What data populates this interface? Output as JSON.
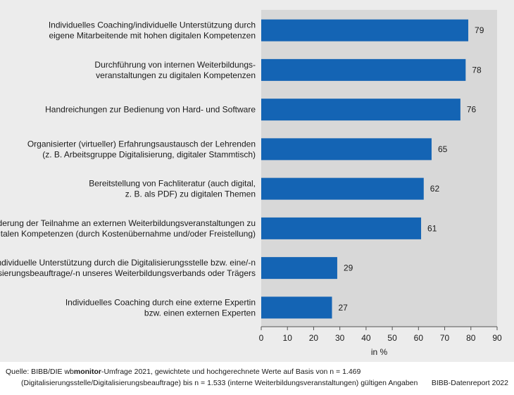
{
  "chart_data": {
    "type": "bar",
    "orientation": "horizontal",
    "categories": [
      [
        "Individuelles Coaching/individuelle Unterstützung durch",
        "eigene Mitarbeitende mit hohen digitalen Kompetenzen"
      ],
      [
        "Durchführung von internen Weiterbildungs-",
        "veranstaltungen zu digitalen Kompetenzen"
      ],
      [
        "Handreichungen zur Bedienung von Hard- und Software"
      ],
      [
        "Organisierter (virtueller) Erfahrungsaustausch der Lehrenden",
        "(z. B. Arbeitsgruppe Digitalisierung, digitaler Stammtisch)"
      ],
      [
        "Bereitstellung von Fachliteratur (auch digital,",
        "z. B. als PDF) zu digitalen Themen"
      ],
      [
        "Förderung der Teilnahme an externen Weiterbildungsveranstaltungen zu",
        "digitalen Kompetenzen (durch Kostenübernahme und/oder Freistellung)"
      ],
      [
        "Individuelle Unterstützung durch die Digitalisierungsstelle bzw. eine/-n",
        "Digitalisierungsbeauftrage/-n unseres Weiterbildungsverbands oder Trägers"
      ],
      [
        "Individuelles Coaching durch eine externe Expertin",
        "bzw. einen externen Experten"
      ]
    ],
    "values": [
      79,
      78,
      76,
      65,
      62,
      61,
      29,
      27
    ],
    "xlabel": "in %",
    "xlim": [
      0,
      90
    ],
    "xticks": [
      0,
      10,
      20,
      30,
      40,
      50,
      60,
      70,
      80,
      90
    ],
    "bar_color": "#1464b4",
    "plot_background": "#d8d8d8",
    "panel_background": "#ececec",
    "grid": false
  },
  "footer": {
    "source_prefix": "Quelle: BIBB/DIE wb",
    "source_bold": "monitor",
    "source_suffix": "-Umfrage 2021, gewichtete und hochgerechnete Werte auf Basis von n = 1.469",
    "source_line2": "(Digitalisierungsstelle/Digitalisierungsbeauftrage) bis n = 1.533 (interne Weiterbildungsveranstaltungen) gültigen Angaben",
    "report": "BIBB-Datenreport 2022"
  }
}
